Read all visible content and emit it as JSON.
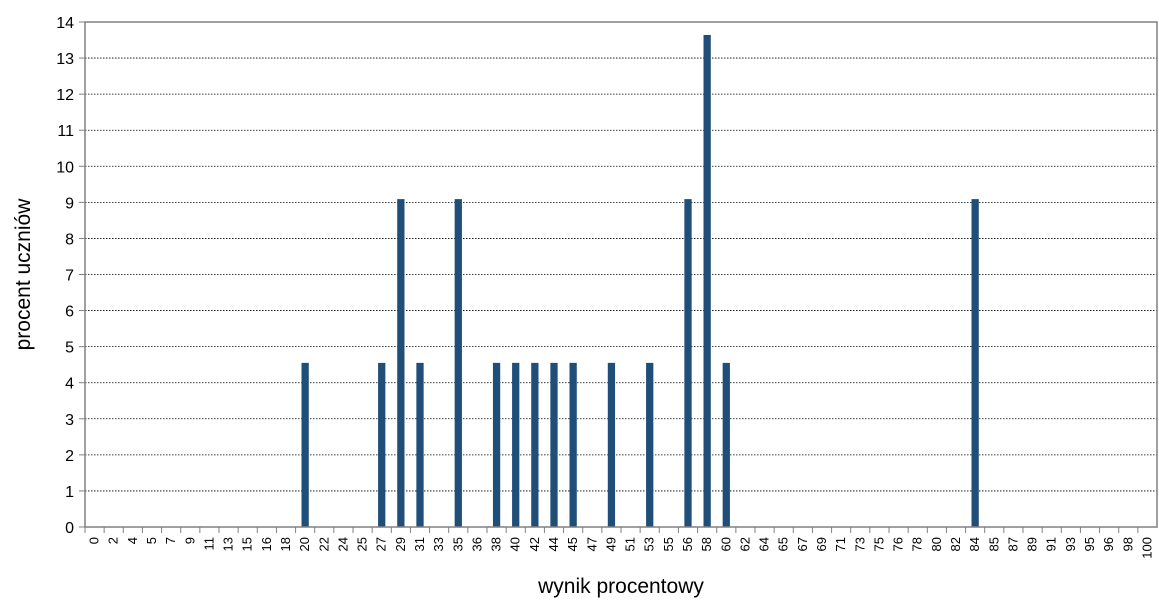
{
  "chart_data": {
    "type": "bar",
    "title": "",
    "xlabel": "wynik procentowy",
    "ylabel": "procent uczniów",
    "ylim": [
      0,
      14
    ],
    "yticks": [
      "0",
      "1",
      "2",
      "3",
      "4",
      "5",
      "6",
      "7",
      "8",
      "9",
      "10",
      "11",
      "12",
      "13",
      "14"
    ],
    "grid": true,
    "bar_color": "#1F4E79",
    "categories": [
      "0",
      "2",
      "4",
      "5",
      "7",
      "9",
      "11",
      "13",
      "15",
      "16",
      "18",
      "20",
      "22",
      "24",
      "25",
      "27",
      "29",
      "31",
      "33",
      "35",
      "36",
      "38",
      "40",
      "42",
      "44",
      "45",
      "47",
      "49",
      "51",
      "53",
      "55",
      "56",
      "58",
      "60",
      "62",
      "64",
      "65",
      "67",
      "69",
      "71",
      "73",
      "75",
      "76",
      "78",
      "80",
      "82",
      "84",
      "85",
      "87",
      "89",
      "91",
      "93",
      "95",
      "96",
      "98",
      "100"
    ],
    "values": [
      0,
      0,
      0,
      0,
      0,
      0,
      0,
      0,
      0,
      0,
      0,
      4.55,
      0,
      0,
      0,
      4.55,
      9.09,
      4.55,
      0,
      9.09,
      0,
      4.55,
      4.55,
      4.55,
      4.55,
      4.55,
      0,
      4.55,
      0,
      4.55,
      0,
      9.09,
      13.64,
      4.55,
      0,
      0,
      0,
      0,
      0,
      0,
      0,
      0,
      0,
      0,
      0,
      0,
      9.09,
      0,
      0,
      0,
      0,
      0,
      0,
      0,
      0,
      0
    ]
  }
}
